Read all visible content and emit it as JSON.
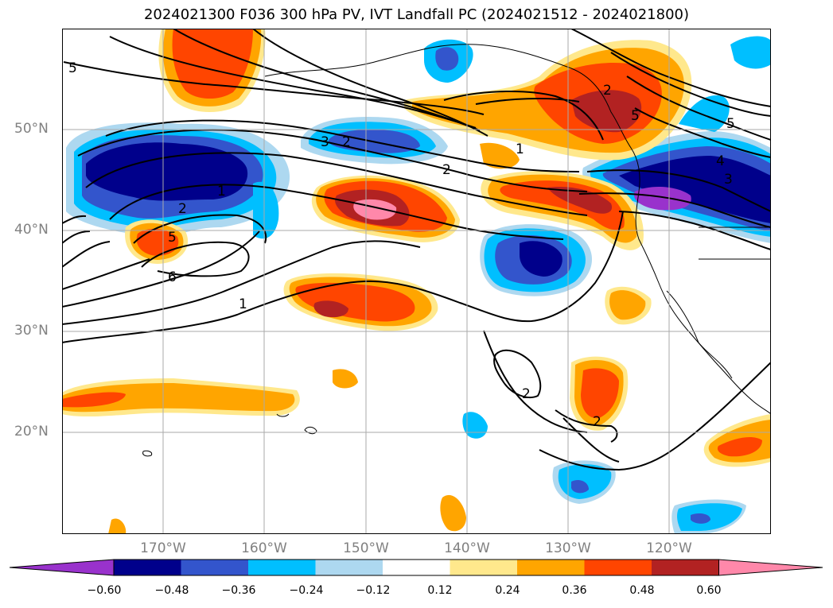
{
  "title": "2024021300 F036 300 hPa PV, IVT Landfall PC (2024021512 - 2024021800)",
  "map": {
    "lat_labels": [
      "50°N",
      "40°N",
      "30°N",
      "20°N"
    ],
    "lon_labels": [
      "170°W",
      "160°W",
      "150°W",
      "140°W",
      "130°W",
      "120°W"
    ],
    "contour_labels": [
      "5",
      "1",
      "2",
      "2",
      "5",
      "6",
      "1",
      "3",
      "1",
      "2",
      "2",
      "5",
      "5",
      "4",
      "3",
      "2",
      "2"
    ]
  },
  "colorbar": {
    "ticks": [
      "−0.60",
      "−0.48",
      "−0.36",
      "−0.24",
      "−0.12",
      "0.12",
      "0.24",
      "0.36",
      "0.48",
      "0.60"
    ],
    "colors": [
      "#9932cc",
      "#00008b",
      "#3355cc",
      "#00bfff",
      "#add8f0",
      "#ffffff",
      "#ffe88c",
      "#ffa500",
      "#ff4500",
      "#b22222",
      "#ff88aa"
    ]
  }
}
